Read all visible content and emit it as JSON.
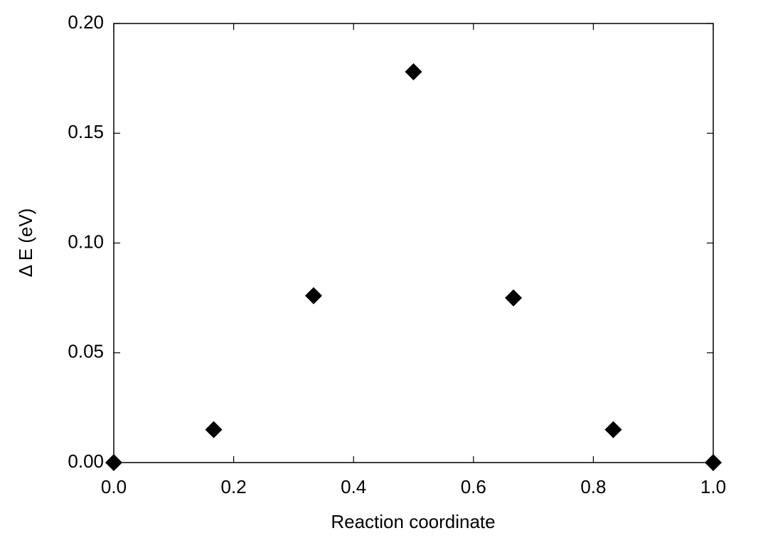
{
  "chart_data": {
    "type": "scatter",
    "xlabel": "Reaction coordinate",
    "ylabel": "Δ E (eV)",
    "x": [
      0,
      0.1667,
      0.3333,
      0.5,
      0.6667,
      0.8333,
      1
    ],
    "series": [
      {
        "color": "#000000",
        "marker": "diamond",
        "values": [
          0,
          0.015,
          0.076,
          0.178,
          0.075,
          0.015,
          0
        ]
      }
    ],
    "xlim": [
      0,
      1
    ],
    "ylim": [
      0,
      0.2
    ],
    "xticks": [
      {
        "value": 0,
        "label": "0.0"
      },
      {
        "value": 0.2,
        "label": "0.2"
      },
      {
        "value": 0.4,
        "label": "0.4"
      },
      {
        "value": 0.6,
        "label": "0.6"
      },
      {
        "value": 0.8,
        "label": "0.8"
      },
      {
        "value": 1,
        "label": "1.0"
      }
    ],
    "yticks": [
      {
        "value": 0,
        "label": "0.00"
      },
      {
        "value": 0.05,
        "label": "0.05"
      },
      {
        "value": 0.1,
        "label": "0.10"
      },
      {
        "value": 0.15,
        "label": "0.15"
      },
      {
        "value": 0.2,
        "label": "0.20"
      }
    ],
    "grid": false
  }
}
